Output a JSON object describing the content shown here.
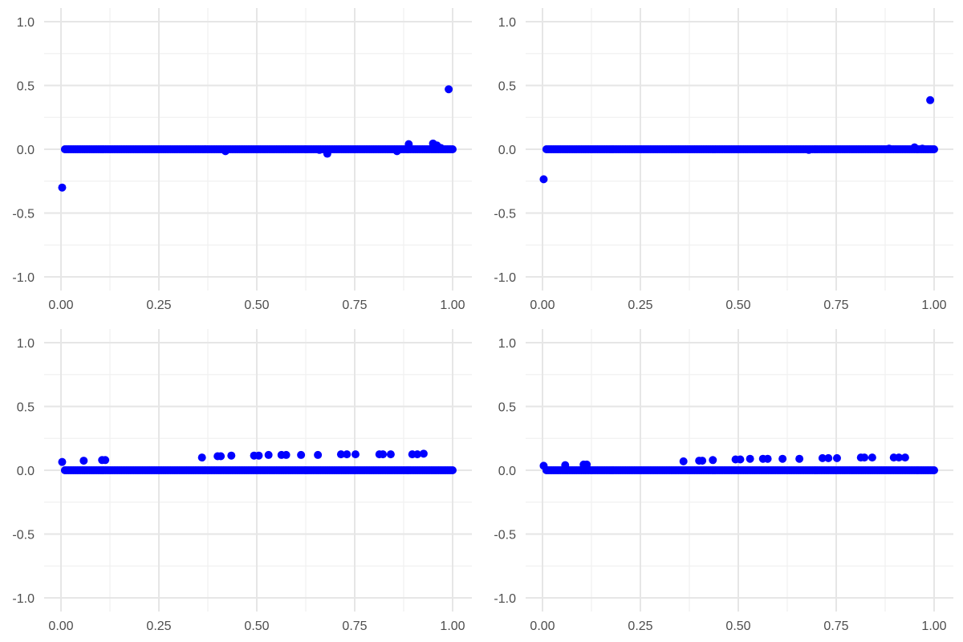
{
  "colors": {
    "point": "#0000ff",
    "grid_major": "#e6e6e6",
    "grid_minor": "#f0f0f0",
    "tick_text": "#4d4d4d"
  },
  "chart_data": [
    {
      "type": "scatter",
      "title": "",
      "xlabel": "",
      "ylabel": "",
      "xlim": [
        0,
        1
      ],
      "ylim": [
        -1,
        1
      ],
      "xticks": [
        0,
        0.25,
        0.5,
        0.75,
        1
      ],
      "xtick_labels": [
        "0.00",
        "0.25",
        "0.50",
        "0.75",
        "1.00"
      ],
      "yticks": [
        -1,
        -0.5,
        0,
        0.5,
        1
      ],
      "ytick_labels": [
        "-1.0",
        "-0.5",
        "0.0",
        "0.5",
        "1.0"
      ],
      "grid": true,
      "legend": "none",
      "baseline": {
        "y": 0,
        "x_from": 0.01,
        "x_to": 1.0,
        "description": "dense cluster of points at y = 0"
      },
      "points": [
        [
          0.003,
          -0.3
        ],
        [
          0.42,
          -0.015
        ],
        [
          0.68,
          -0.035
        ],
        [
          0.66,
          -0.005
        ],
        [
          0.858,
          -0.015
        ],
        [
          0.888,
          0.04
        ],
        [
          0.95,
          0.045
        ],
        [
          0.96,
          0.03
        ],
        [
          0.97,
          0.01
        ],
        [
          0.99,
          0.47
        ]
      ]
    },
    {
      "type": "scatter",
      "title": "",
      "xlabel": "",
      "ylabel": "",
      "xlim": [
        0,
        1
      ],
      "ylim": [
        -1,
        1
      ],
      "xticks": [
        0,
        0.25,
        0.5,
        0.75,
        1
      ],
      "xtick_labels": [
        "0.00",
        "0.25",
        "0.50",
        "0.75",
        "1.00"
      ],
      "yticks": [
        -1,
        -0.5,
        0,
        0.5,
        1
      ],
      "ytick_labels": [
        "-1.0",
        "-0.5",
        "0.0",
        "0.5",
        "1.0"
      ],
      "grid": true,
      "legend": "none",
      "baseline": {
        "y": 0,
        "x_from": 0.01,
        "x_to": 1.0,
        "description": "dense cluster of points at y = 0"
      },
      "points": [
        [
          0.003,
          -0.235
        ],
        [
          0.68,
          -0.005
        ],
        [
          0.885,
          0.005
        ],
        [
          0.95,
          0.015
        ],
        [
          0.97,
          0.005
        ],
        [
          0.99,
          0.385
        ]
      ]
    },
    {
      "type": "scatter",
      "title": "",
      "xlabel": "",
      "ylabel": "",
      "xlim": [
        0,
        1
      ],
      "ylim": [
        -1,
        1
      ],
      "xticks": [
        0,
        0.25,
        0.5,
        0.75,
        1
      ],
      "xtick_labels": [
        "0.00",
        "0.25",
        "0.50",
        "0.75",
        "1.00"
      ],
      "yticks": [
        -1,
        -0.5,
        0,
        0.5,
        1
      ],
      "ytick_labels": [
        "-1.0",
        "-0.5",
        "0.0",
        "0.5",
        "1.0"
      ],
      "grid": true,
      "legend": "none",
      "baseline": {
        "y": 0,
        "x_from": 0.01,
        "x_to": 1.0,
        "description": "dense cluster of points at y = 0"
      },
      "points": [
        [
          0.003,
          0.065
        ],
        [
          0.058,
          0.075
        ],
        [
          0.105,
          0.08
        ],
        [
          0.113,
          0.08
        ],
        [
          0.36,
          0.1
        ],
        [
          0.4,
          0.11
        ],
        [
          0.408,
          0.11
        ],
        [
          0.435,
          0.115
        ],
        [
          0.493,
          0.115
        ],
        [
          0.505,
          0.115
        ],
        [
          0.53,
          0.12
        ],
        [
          0.563,
          0.12
        ],
        [
          0.575,
          0.12
        ],
        [
          0.613,
          0.12
        ],
        [
          0.656,
          0.12
        ],
        [
          0.715,
          0.125
        ],
        [
          0.73,
          0.125
        ],
        [
          0.752,
          0.125
        ],
        [
          0.813,
          0.125
        ],
        [
          0.822,
          0.125
        ],
        [
          0.842,
          0.125
        ],
        [
          0.897,
          0.125
        ],
        [
          0.91,
          0.125
        ],
        [
          0.926,
          0.13
        ]
      ]
    },
    {
      "type": "scatter",
      "title": "",
      "xlabel": "",
      "ylabel": "",
      "xlim": [
        0,
        1
      ],
      "ylim": [
        -1,
        1
      ],
      "xticks": [
        0,
        0.25,
        0.5,
        0.75,
        1
      ],
      "xtick_labels": [
        "0.00",
        "0.25",
        "0.50",
        "0.75",
        "1.00"
      ],
      "yticks": [
        -1,
        -0.5,
        0,
        0.5,
        1
      ],
      "ytick_labels": [
        "-1.0",
        "-0.5",
        "0.0",
        "0.5",
        "1.0"
      ],
      "grid": true,
      "legend": "none",
      "baseline": {
        "y": 0,
        "x_from": 0.01,
        "x_to": 1.0,
        "description": "dense cluster of points at y = 0"
      },
      "points": [
        [
          0.003,
          0.035
        ],
        [
          0.058,
          0.04
        ],
        [
          0.105,
          0.045
        ],
        [
          0.113,
          0.045
        ],
        [
          0.36,
          0.07
        ],
        [
          0.4,
          0.075
        ],
        [
          0.408,
          0.075
        ],
        [
          0.435,
          0.08
        ],
        [
          0.493,
          0.085
        ],
        [
          0.505,
          0.085
        ],
        [
          0.53,
          0.09
        ],
        [
          0.563,
          0.09
        ],
        [
          0.575,
          0.09
        ],
        [
          0.613,
          0.09
        ],
        [
          0.656,
          0.09
        ],
        [
          0.715,
          0.095
        ],
        [
          0.73,
          0.095
        ],
        [
          0.752,
          0.095
        ],
        [
          0.813,
          0.1
        ],
        [
          0.822,
          0.1
        ],
        [
          0.842,
          0.1
        ],
        [
          0.897,
          0.1
        ],
        [
          0.91,
          0.1
        ],
        [
          0.926,
          0.1
        ]
      ]
    }
  ]
}
